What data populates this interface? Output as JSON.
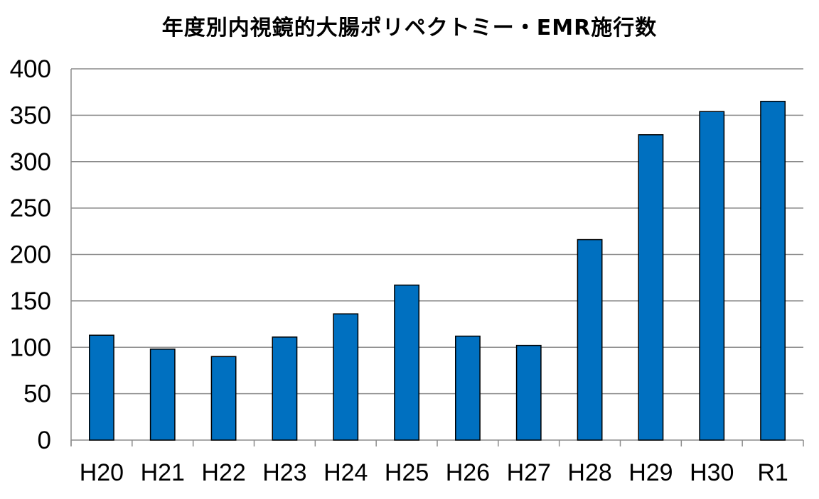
{
  "chart_data": {
    "type": "bar",
    "title": "年度別内視鏡的大腸ポリペクトミー・EMR施行数",
    "xlabel": "",
    "ylabel": "",
    "categories": [
      "H20",
      "H21",
      "H22",
      "H23",
      "H24",
      "H25",
      "H26",
      "H27",
      "H28",
      "H29",
      "H30",
      "R1"
    ],
    "series": [
      {
        "values": [
          113,
          98,
          90,
          111,
          136,
          167,
          112,
          102,
          216,
          329,
          354,
          365
        ],
        "color": "#0070C0"
      }
    ],
    "ylim": [
      0,
      400
    ],
    "yticks": [
      0,
      50,
      100,
      150,
      200,
      250,
      300,
      350,
      400
    ],
    "grid": true,
    "legend": "none"
  }
}
